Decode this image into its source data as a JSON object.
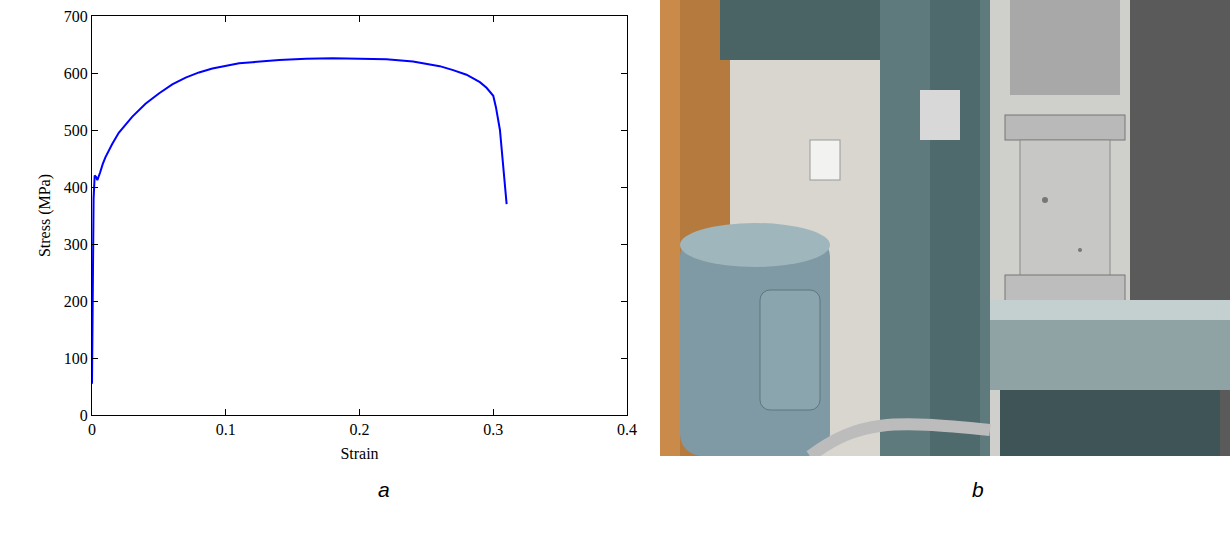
{
  "chart_data": {
    "type": "line",
    "x_label": "Strain",
    "y_label": "Stress (MPa)",
    "x": [
      0,
      0.0012,
      0.002,
      0.003,
      0.004,
      0.005,
      0.006,
      0.008,
      0.01,
      0.015,
      0.02,
      0.03,
      0.04,
      0.05,
      0.06,
      0.07,
      0.08,
      0.09,
      0.1,
      0.11,
      0.12,
      0.14,
      0.16,
      0.18,
      0.2,
      0.22,
      0.24,
      0.26,
      0.27,
      0.28,
      0.29,
      0.295,
      0.3,
      0.302,
      0.305,
      0.31
    ],
    "series": [
      {
        "name": "Stress",
        "color": "#0000ff",
        "values": [
          55,
          380,
          420,
          418,
          412,
          418,
          425,
          440,
          452,
          475,
          495,
          523,
          546,
          564,
          580,
          592,
          601,
          608,
          613,
          617,
          619,
          623,
          625,
          626,
          625,
          624,
          620,
          612,
          605,
          597,
          584,
          574,
          560,
          540,
          500,
          370
        ]
      }
    ],
    "xlim": [
      0,
      0.4
    ],
    "xticks": [
      0,
      0.1,
      0.2,
      0.3,
      0.4
    ],
    "ylim": [
      0,
      700
    ],
    "yticks": [
      0,
      100,
      200,
      300,
      400,
      500,
      600,
      700
    ],
    "grid": false
  },
  "panel_labels": [
    "a",
    "b"
  ]
}
